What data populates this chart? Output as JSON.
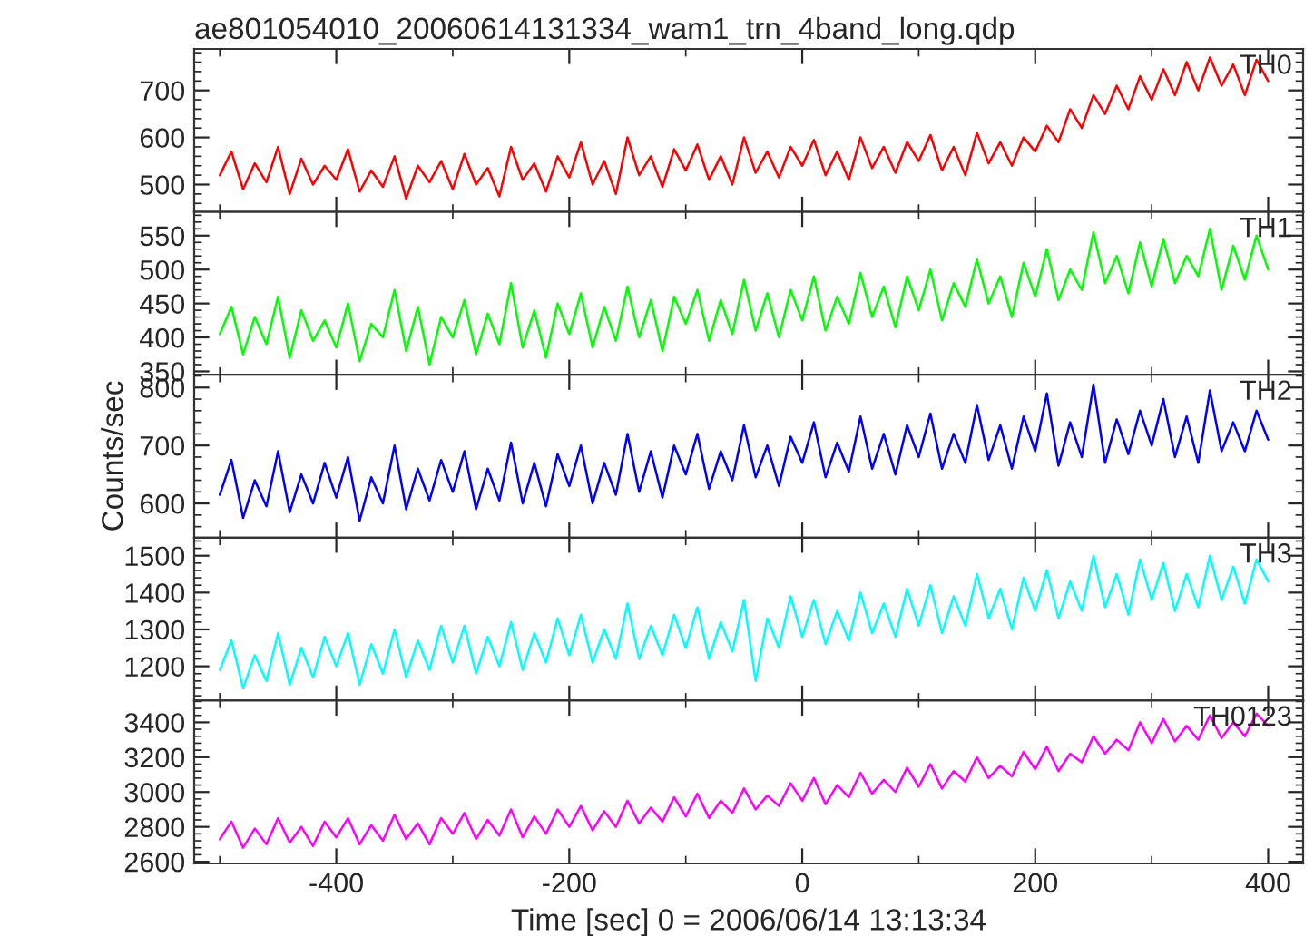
{
  "chart_data": [
    {
      "type": "line",
      "title": "ae801054010_20060614131334_wam1_trn_4band_long.qdp",
      "xlim": [
        -522,
        430
      ],
      "xticks": [
        -400,
        -200,
        0,
        200,
        400
      ],
      "ylim": [
        442,
        788
      ],
      "yticks": [
        500,
        600,
        700
      ],
      "tick_labels": "y",
      "grid": false,
      "legend": false,
      "marker": "none",
      "line_style": "solid",
      "x": [
        -500,
        -490,
        -480,
        -470,
        -460,
        -450,
        -440,
        -430,
        -420,
        -410,
        -400,
        -390,
        -380,
        -370,
        -360,
        -350,
        -340,
        -330,
        -320,
        -310,
        -300,
        -290,
        -280,
        -270,
        -260,
        -250,
        -240,
        -230,
        -220,
        -210,
        -200,
        -190,
        -180,
        -170,
        -160,
        -150,
        -140,
        -130,
        -120,
        -110,
        -100,
        -90,
        -80,
        -70,
        -60,
        -50,
        -40,
        -30,
        -20,
        -10,
        0,
        10,
        20,
        30,
        40,
        50,
        60,
        70,
        80,
        90,
        100,
        110,
        120,
        130,
        140,
        150,
        160,
        170,
        180,
        190,
        200,
        210,
        220,
        230,
        240,
        250,
        260,
        270,
        280,
        290,
        300,
        310,
        320,
        330,
        340,
        350,
        360,
        370,
        380,
        390,
        400
      ],
      "series": [
        {
          "name": "TH0",
          "color": "#ff0000",
          "values": [
            520,
            570,
            490,
            545,
            505,
            580,
            480,
            555,
            500,
            540,
            510,
            575,
            485,
            530,
            495,
            560,
            470,
            540,
            505,
            550,
            490,
            565,
            500,
            535,
            475,
            580,
            510,
            545,
            485,
            560,
            515,
            590,
            500,
            550,
            480,
            600,
            520,
            560,
            495,
            575,
            530,
            585,
            510,
            560,
            500,
            600,
            525,
            570,
            515,
            580,
            540,
            595,
            520,
            570,
            510,
            600,
            535,
            580,
            525,
            590,
            550,
            605,
            530,
            580,
            520,
            610,
            545,
            590,
            540,
            600,
            570,
            625,
            590,
            660,
            620,
            690,
            650,
            710,
            660,
            730,
            680,
            745,
            690,
            760,
            700,
            770,
            710,
            755,
            690,
            765,
            720
          ]
        }
      ]
    },
    {
      "type": "line",
      "xlim": [
        -522,
        430
      ],
      "xticks": [
        -400,
        -200,
        0,
        200,
        400
      ],
      "ylim": [
        345,
        585
      ],
      "yticks": [
        350,
        400,
        450,
        500,
        550
      ],
      "tick_labels": "y",
      "grid": false,
      "legend": false,
      "marker": "none",
      "line_style": "solid",
      "x": [
        -500,
        -490,
        -480,
        -470,
        -460,
        -450,
        -440,
        -430,
        -420,
        -410,
        -400,
        -390,
        -380,
        -370,
        -360,
        -350,
        -340,
        -330,
        -320,
        -310,
        -300,
        -290,
        -280,
        -270,
        -260,
        -250,
        -240,
        -230,
        -220,
        -210,
        -200,
        -190,
        -180,
        -170,
        -160,
        -150,
        -140,
        -130,
        -120,
        -110,
        -100,
        -90,
        -80,
        -70,
        -60,
        -50,
        -40,
        -30,
        -20,
        -10,
        0,
        10,
        20,
        30,
        40,
        50,
        60,
        70,
        80,
        90,
        100,
        110,
        120,
        130,
        140,
        150,
        160,
        170,
        180,
        190,
        200,
        210,
        220,
        230,
        240,
        250,
        260,
        270,
        280,
        290,
        300,
        310,
        320,
        330,
        340,
        350,
        360,
        370,
        380,
        390,
        400
      ],
      "series": [
        {
          "name": "TH1",
          "color": "#00ff00",
          "values": [
            405,
            445,
            375,
            430,
            390,
            460,
            370,
            440,
            395,
            425,
            385,
            450,
            365,
            420,
            400,
            470,
            380,
            445,
            360,
            430,
            400,
            455,
            375,
            435,
            390,
            480,
            385,
            440,
            370,
            450,
            405,
            465,
            385,
            445,
            395,
            475,
            400,
            455,
            380,
            460,
            420,
            470,
            395,
            455,
            405,
            485,
            410,
            465,
            400,
            470,
            425,
            490,
            410,
            460,
            420,
            495,
            430,
            475,
            415,
            490,
            440,
            500,
            425,
            480,
            445,
            515,
            450,
            490,
            430,
            510,
            460,
            530,
            455,
            500,
            470,
            555,
            480,
            520,
            465,
            540,
            475,
            545,
            480,
            520,
            490,
            560,
            470,
            535,
            485,
            550,
            500
          ]
        }
      ]
    },
    {
      "type": "line",
      "ylabel": "Counts/sec",
      "xlim": [
        -522,
        430
      ],
      "xticks": [
        -400,
        -200,
        0,
        200,
        400
      ],
      "ylim": [
        541,
        822
      ],
      "yticks": [
        600,
        700,
        800
      ],
      "tick_labels": "y",
      "grid": false,
      "legend": false,
      "marker": "none",
      "line_style": "solid",
      "x": [
        -500,
        -490,
        -480,
        -470,
        -460,
        -450,
        -440,
        -430,
        -420,
        -410,
        -400,
        -390,
        -380,
        -370,
        -360,
        -350,
        -340,
        -330,
        -320,
        -310,
        -300,
        -290,
        -280,
        -270,
        -260,
        -250,
        -240,
        -230,
        -220,
        -210,
        -200,
        -190,
        -180,
        -170,
        -160,
        -150,
        -140,
        -130,
        -120,
        -110,
        -100,
        -90,
        -80,
        -70,
        -60,
        -50,
        -40,
        -30,
        -20,
        -10,
        0,
        10,
        20,
        30,
        40,
        50,
        60,
        70,
        80,
        90,
        100,
        110,
        120,
        130,
        140,
        150,
        160,
        170,
        180,
        190,
        200,
        210,
        220,
        230,
        240,
        250,
        260,
        270,
        280,
        290,
        300,
        310,
        320,
        330,
        340,
        350,
        360,
        370,
        380,
        390,
        400
      ],
      "series": [
        {
          "name": "TH2",
          "color": "#0000ff",
          "values": [
            615,
            675,
            575,
            640,
            595,
            690,
            585,
            650,
            600,
            670,
            610,
            680,
            570,
            645,
            600,
            700,
            590,
            660,
            605,
            675,
            620,
            690,
            590,
            660,
            605,
            705,
            600,
            670,
            595,
            685,
            630,
            700,
            600,
            670,
            615,
            720,
            620,
            690,
            610,
            700,
            650,
            720,
            625,
            690,
            640,
            735,
            645,
            700,
            630,
            715,
            670,
            740,
            645,
            705,
            655,
            750,
            660,
            720,
            650,
            735,
            680,
            755,
            660,
            720,
            670,
            770,
            675,
            735,
            660,
            750,
            690,
            790,
            665,
            740,
            680,
            805,
            670,
            745,
            685,
            760,
            700,
            780,
            680,
            750,
            670,
            795,
            690,
            740,
            690,
            760,
            710
          ]
        }
      ]
    },
    {
      "type": "line",
      "xlim": [
        -522,
        430
      ],
      "xticks": [
        -400,
        -200,
        0,
        200,
        400
      ],
      "ylim": [
        1107,
        1549
      ],
      "yticks": [
        1200,
        1300,
        1400,
        1500
      ],
      "tick_labels": "y",
      "grid": false,
      "legend": false,
      "marker": "none",
      "line_style": "solid",
      "x": [
        -500,
        -490,
        -480,
        -470,
        -460,
        -450,
        -440,
        -430,
        -420,
        -410,
        -400,
        -390,
        -380,
        -370,
        -360,
        -350,
        -340,
        -330,
        -320,
        -310,
        -300,
        -290,
        -280,
        -270,
        -260,
        -250,
        -240,
        -230,
        -220,
        -210,
        -200,
        -190,
        -180,
        -170,
        -160,
        -150,
        -140,
        -130,
        -120,
        -110,
        -100,
        -90,
        -80,
        -70,
        -60,
        -50,
        -40,
        -30,
        -20,
        -10,
        0,
        10,
        20,
        30,
        40,
        50,
        60,
        70,
        80,
        90,
        100,
        110,
        120,
        130,
        140,
        150,
        160,
        170,
        180,
        190,
        200,
        210,
        220,
        230,
        240,
        250,
        260,
        270,
        280,
        290,
        300,
        310,
        320,
        330,
        340,
        350,
        360,
        370,
        380,
        390,
        400
      ],
      "series": [
        {
          "name": "TH3",
          "color": "#00ffff",
          "values": [
            1190,
            1270,
            1140,
            1230,
            1160,
            1290,
            1150,
            1250,
            1170,
            1280,
            1200,
            1290,
            1150,
            1260,
            1180,
            1300,
            1170,
            1270,
            1190,
            1310,
            1210,
            1310,
            1180,
            1280,
            1200,
            1320,
            1190,
            1290,
            1210,
            1330,
            1230,
            1340,
            1210,
            1300,
            1220,
            1370,
            1220,
            1310,
            1230,
            1340,
            1250,
            1360,
            1220,
            1320,
            1240,
            1380,
            1160,
            1330,
            1250,
            1390,
            1280,
            1380,
            1260,
            1350,
            1270,
            1400,
            1290,
            1370,
            1280,
            1410,
            1310,
            1420,
            1290,
            1390,
            1310,
            1450,
            1330,
            1410,
            1300,
            1440,
            1350,
            1460,
            1330,
            1430,
            1350,
            1500,
            1360,
            1450,
            1340,
            1490,
            1380,
            1480,
            1350,
            1450,
            1360,
            1500,
            1380,
            1470,
            1370,
            1490,
            1430
          ]
        }
      ]
    },
    {
      "type": "line",
      "xlabel": "Time [sec] 0 = 2006/06/14 13:13:34",
      "xlim": [
        -522,
        430
      ],
      "xticks": [
        -400,
        -200,
        0,
        200,
        400
      ],
      "ylim": [
        2590,
        3525
      ],
      "yticks": [
        2600,
        2800,
        3000,
        3200,
        3400
      ],
      "grid": false,
      "legend": false,
      "marker": "none",
      "line_style": "solid",
      "x": [
        -500,
        -490,
        -480,
        -470,
        -460,
        -450,
        -440,
        -430,
        -420,
        -410,
        -400,
        -390,
        -380,
        -370,
        -360,
        -350,
        -340,
        -330,
        -320,
        -310,
        -300,
        -290,
        -280,
        -270,
        -260,
        -250,
        -240,
        -230,
        -220,
        -210,
        -200,
        -190,
        -180,
        -170,
        -160,
        -150,
        -140,
        -130,
        -120,
        -110,
        -100,
        -90,
        -80,
        -70,
        -60,
        -50,
        -40,
        -30,
        -20,
        -10,
        0,
        10,
        20,
        30,
        40,
        50,
        60,
        70,
        80,
        90,
        100,
        110,
        120,
        130,
        140,
        150,
        160,
        170,
        180,
        190,
        200,
        210,
        220,
        230,
        240,
        250,
        260,
        270,
        280,
        290,
        300,
        310,
        320,
        330,
        340,
        350,
        360,
        370,
        380,
        390,
        400
      ],
      "series": [
        {
          "name": "TH0123",
          "color": "#ff00ff",
          "values": [
            2730,
            2830,
            2680,
            2790,
            2700,
            2850,
            2710,
            2800,
            2690,
            2830,
            2740,
            2850,
            2700,
            2810,
            2720,
            2870,
            2730,
            2820,
            2700,
            2850,
            2760,
            2880,
            2730,
            2840,
            2750,
            2900,
            2740,
            2860,
            2760,
            2900,
            2800,
            2920,
            2780,
            2890,
            2800,
            2950,
            2820,
            2910,
            2830,
            2970,
            2860,
            2990,
            2850,
            2950,
            2880,
            3020,
            2900,
            2980,
            2920,
            3050,
            2950,
            3080,
            2930,
            3040,
            2970,
            3110,
            2990,
            3070,
            3000,
            3140,
            3030,
            3160,
            3020,
            3120,
            3060,
            3200,
            3080,
            3150,
            3090,
            3230,
            3130,
            3260,
            3120,
            3220,
            3170,
            3320,
            3220,
            3300,
            3240,
            3400,
            3280,
            3420,
            3290,
            3380,
            3300,
            3440,
            3310,
            3400,
            3320,
            3450,
            3380
          ]
        }
      ]
    }
  ]
}
